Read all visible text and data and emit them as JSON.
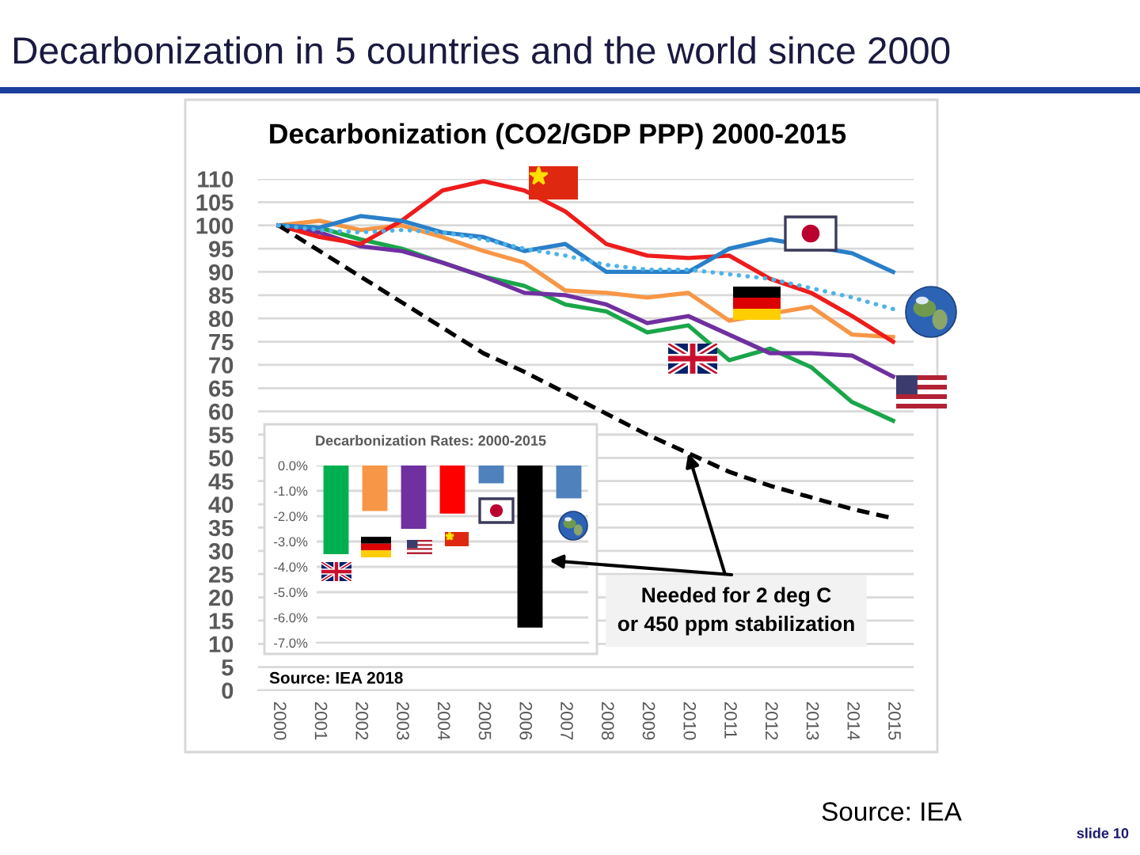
{
  "chart_data": [
    {
      "type": "line",
      "title": "Decarbonization in 5 countries and the world since 2000",
      "subtitle": "Decarbonization (CO2/GDP PPP) 2000-2015",
      "categories": [
        "2000",
        "2001",
        "2002",
        "2003",
        "2004",
        "2005",
        "2006",
        "2007",
        "2008",
        "2009",
        "2010",
        "2011",
        "2012",
        "2013",
        "2014",
        "2015"
      ],
      "series": [
        {
          "color": "#1aa64a",
          "values": [
            100,
            99.5,
            97,
            95,
            92,
            89,
            87,
            83,
            81.5,
            77,
            78.5,
            71,
            73.5,
            69.5,
            62,
            58
          ]
        },
        {
          "color": "#f79646",
          "values": [
            100,
            101,
            99,
            100,
            97.5,
            94.5,
            92,
            86,
            85.5,
            84.5,
            85.5,
            79.5,
            null,
            82.5,
            76.5,
            76
          ]
        },
        {
          "color": "#7030a0",
          "values": [
            100,
            98.5,
            95.5,
            94.5,
            92,
            89,
            85.5,
            85,
            83,
            79,
            80.5,
            76.5,
            72.5,
            72.5,
            72,
            67.5
          ]
        },
        {
          "color": "#ee1c1c",
          "values": [
            100,
            97.5,
            96,
            101,
            107.5,
            109.5,
            107.5,
            103,
            96,
            93.5,
            93,
            93.5,
            88.5,
            85.5,
            80.5,
            75
          ]
        },
        {
          "color": "#2a7fc9",
          "values": [
            100,
            99.5,
            102,
            101,
            98.5,
            97.5,
            94.5,
            96,
            90,
            90,
            90,
            95,
            97,
            null,
            94,
            90
          ]
        },
        {
          "color": "#000000",
          "line_style": "dashed",
          "values": [
            100,
            94.5,
            89,
            83.5,
            78,
            72.5,
            68.5,
            64,
            59.5,
            55,
            51,
            47,
            44,
            41.5,
            39,
            37
          ]
        },
        {
          "color": "#4db3e6",
          "line_style": "dotted",
          "values": [
            100,
            99,
            98.5,
            99,
            98.5,
            97,
            95,
            93.5,
            91.5,
            90.5,
            90.5,
            89.5,
            88.5,
            86.5,
            84.5,
            82
          ]
        }
      ],
      "ylim": [
        0,
        110
      ],
      "yticks": [
        0,
        5,
        10,
        15,
        20,
        25,
        30,
        35,
        40,
        45,
        50,
        55,
        60,
        65,
        70,
        75,
        80,
        85,
        90,
        95,
        100,
        105,
        110
      ],
      "grid": "y",
      "line_style": "solid",
      "annotations": [
        "Source: IEA 2018",
        {
          "text": "Needed for 2 deg C\nor 450 ppm stabilization",
          "x": "2010",
          "y": 51
        },
        "Source: IEA",
        "slide 10"
      ]
    },
    {
      "type": "bar",
      "title": "Decarbonization Rates: 2000-2015",
      "categories": [
        null,
        null,
        null,
        null,
        null,
        null,
        null
      ],
      "values": [
        -3.5,
        -1.8,
        -2.5,
        -1.9,
        -0.7,
        -6.4,
        -1.3
      ],
      "colors": [
        "#00b050",
        "#f79646",
        "#7030a0",
        "#ff0000",
        "#4f81bd",
        "#000000",
        "#4f81bd"
      ],
      "ylim": [
        -7,
        0
      ],
      "yticks": [
        {
          "value": 0,
          "label": "0.0%"
        },
        {
          "value": -1,
          "label": "-1.0%"
        },
        {
          "value": -2,
          "label": "-2.0%"
        },
        {
          "value": -3,
          "label": "-3.0%"
        },
        {
          "value": -4,
          "label": "-4.0%"
        },
        {
          "value": -5,
          "label": "-5.0%"
        },
        {
          "value": -6,
          "label": "-6.0%"
        },
        {
          "value": -7,
          "label": "-7.0%"
        }
      ],
      "grid": "y"
    }
  ]
}
